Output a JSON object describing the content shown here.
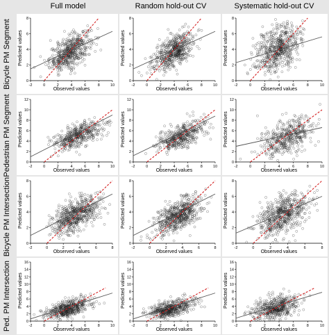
{
  "columns": [
    "Full model",
    "Random hold-out CV",
    "Systematic hold-out CV"
  ],
  "rows": [
    "Bicycle PM Segment",
    "Pedestrian PM Segment",
    "Bicycle PM Intersection",
    "Ped. PM Intersection"
  ],
  "axis_text": {
    "x": "Observed values",
    "y": "Predicted values"
  },
  "colors": {
    "points": "#1a1a1a",
    "fit_line": "#555555",
    "identity_line": "#d42020",
    "panel_bg": "#ffffff",
    "page_bg": "#e6e6e6"
  },
  "chart_data": [
    {
      "type": "scatter",
      "row": 0,
      "col": 0,
      "xlim": [
        -2,
        10
      ],
      "ylim": [
        0,
        8
      ],
      "xticks": [
        -2,
        0,
        2,
        4,
        6,
        8,
        10
      ],
      "yticks": [
        0,
        2,
        4,
        6,
        8
      ],
      "xlabel": "Observed values",
      "ylabel": "Predicted values",
      "fit_line": [
        [
          -2,
          1.5
        ],
        [
          10,
          6.3
        ]
      ],
      "identity_line": [
        [
          0,
          0
        ],
        [
          8,
          8
        ]
      ],
      "point_cloud": {
        "x_center": 3.8,
        "x_sd": 1.5,
        "y_center": 3.7,
        "y_sd": 1.0,
        "n": 550
      }
    },
    {
      "type": "scatter",
      "row": 0,
      "col": 1,
      "xlim": [
        -2,
        10
      ],
      "ylim": [
        0,
        8
      ],
      "xticks": [
        -2,
        0,
        2,
        4,
        6,
        8,
        10
      ],
      "yticks": [
        0,
        2,
        4,
        6,
        8
      ],
      "xlabel": "Observed values",
      "ylabel": "Predicted values",
      "fit_line": [
        [
          -2,
          1.5
        ],
        [
          10,
          6.3
        ]
      ],
      "identity_line": [
        [
          0,
          0
        ],
        [
          8,
          8
        ]
      ],
      "point_cloud": {
        "x_center": 3.8,
        "x_sd": 1.5,
        "y_center": 3.7,
        "y_sd": 1.0,
        "n": 550
      }
    },
    {
      "type": "scatter",
      "row": 0,
      "col": 2,
      "xlim": [
        -2,
        10
      ],
      "ylim": [
        0,
        8
      ],
      "xticks": [
        -2,
        0,
        2,
        4,
        6,
        8,
        10
      ],
      "yticks": [
        0,
        2,
        4,
        6,
        8
      ],
      "xlabel": "Observed values",
      "ylabel": "Predicted values",
      "fit_line": [
        [
          -2,
          2.3
        ],
        [
          10,
          5.6
        ]
      ],
      "identity_line": [
        [
          0,
          0
        ],
        [
          8,
          8
        ]
      ],
      "point_cloud": {
        "x_center": 3.8,
        "x_sd": 1.6,
        "y_center": 4.0,
        "y_sd": 1.5,
        "n": 600
      }
    },
    {
      "type": "scatter",
      "row": 1,
      "col": 0,
      "xlim": [
        -2,
        10
      ],
      "ylim": [
        0,
        12
      ],
      "xticks": [
        -2,
        0,
        2,
        4,
        6,
        8,
        10
      ],
      "yticks": [
        0,
        2,
        4,
        6,
        8,
        10,
        12
      ],
      "xlabel": "Observed values",
      "ylabel": "Predicted values",
      "fit_line": [
        [
          -2,
          1.0
        ],
        [
          10,
          9.0
        ]
      ],
      "identity_line": [
        [
          0,
          0
        ],
        [
          10,
          10
        ]
      ],
      "point_cloud": {
        "x_center": 5.0,
        "x_sd": 1.8,
        "y_center": 5.0,
        "y_sd": 1.1,
        "n": 450
      }
    },
    {
      "type": "scatter",
      "row": 1,
      "col": 1,
      "xlim": [
        -2,
        10
      ],
      "ylim": [
        0,
        12
      ],
      "xticks": [
        -2,
        0,
        2,
        4,
        6,
        8,
        10
      ],
      "yticks": [
        0,
        2,
        4,
        6,
        8,
        10,
        12
      ],
      "xlabel": "Observed values",
      "ylabel": "Predicted values",
      "fit_line": [
        [
          -2,
          1.2
        ],
        [
          10,
          8.8
        ]
      ],
      "identity_line": [
        [
          0,
          0
        ],
        [
          10,
          10
        ]
      ],
      "point_cloud": {
        "x_center": 5.0,
        "x_sd": 1.8,
        "y_center": 5.0,
        "y_sd": 1.2,
        "n": 450
      }
    },
    {
      "type": "scatter",
      "row": 1,
      "col": 2,
      "xlim": [
        -2,
        10
      ],
      "ylim": [
        0,
        12
      ],
      "xticks": [
        -2,
        0,
        2,
        4,
        6,
        8,
        10
      ],
      "yticks": [
        0,
        2,
        4,
        6,
        8,
        10,
        12
      ],
      "xlabel": "Observed values",
      "ylabel": "Predicted values",
      "fit_line": [
        [
          -2,
          3.0
        ],
        [
          10,
          6.6
        ]
      ],
      "identity_line": [
        [
          0,
          0
        ],
        [
          10,
          10
        ]
      ],
      "point_cloud": {
        "x_center": 5.0,
        "x_sd": 1.8,
        "y_center": 4.9,
        "y_sd": 1.6,
        "n": 450
      }
    },
    {
      "type": "scatter",
      "row": 2,
      "col": 0,
      "xlim": [
        -2,
        8
      ],
      "ylim": [
        0,
        8
      ],
      "xticks": [
        -2,
        0,
        2,
        4,
        6,
        8
      ],
      "yticks": [
        0,
        2,
        4,
        6,
        8
      ],
      "xlabel": "Observed values",
      "ylabel": "Predicted values",
      "fit_line": [
        [
          -2,
          1.0
        ],
        [
          8,
          6.3
        ]
      ],
      "identity_line": [
        [
          0,
          0
        ],
        [
          8,
          8
        ]
      ],
      "point_cloud": {
        "x_center": 3.5,
        "x_sd": 1.4,
        "y_center": 3.6,
        "y_sd": 1.0,
        "n": 600
      }
    },
    {
      "type": "scatter",
      "row": 2,
      "col": 1,
      "xlim": [
        -2,
        8
      ],
      "ylim": [
        0,
        8
      ],
      "xticks": [
        -2,
        0,
        2,
        4,
        6,
        8
      ],
      "yticks": [
        0,
        2,
        4,
        6,
        8
      ],
      "xlabel": "Observed values",
      "ylabel": "Predicted values",
      "fit_line": [
        [
          -2,
          1.0
        ],
        [
          8,
          6.3
        ]
      ],
      "identity_line": [
        [
          0,
          0
        ],
        [
          8,
          8
        ]
      ],
      "point_cloud": {
        "x_center": 3.5,
        "x_sd": 1.4,
        "y_center": 3.6,
        "y_sd": 1.0,
        "n": 600
      }
    },
    {
      "type": "scatter",
      "row": 2,
      "col": 2,
      "xlim": [
        -2,
        8
      ],
      "ylim": [
        0,
        8
      ],
      "xticks": [
        -2,
        0,
        2,
        4,
        6,
        8
      ],
      "yticks": [
        0,
        2,
        4,
        6,
        8
      ],
      "xlabel": "Observed values",
      "ylabel": "Predicted values",
      "fit_line": [
        [
          -2,
          1.3
        ],
        [
          8,
          6.0
        ]
      ],
      "identity_line": [
        [
          0,
          0
        ],
        [
          8,
          8
        ]
      ],
      "point_cloud": {
        "x_center": 3.5,
        "x_sd": 1.4,
        "y_center": 3.7,
        "y_sd": 1.3,
        "n": 600
      }
    },
    {
      "type": "scatter",
      "row": 3,
      "col": 0,
      "xlim": [
        -2,
        10
      ],
      "ylim": [
        0,
        16
      ],
      "xticks": [
        -2,
        0,
        2,
        4,
        6,
        8,
        10
      ],
      "yticks": [
        0,
        2,
        4,
        6,
        8,
        10,
        12,
        14,
        16
      ],
      "xlabel": "Observed values",
      "ylabel": "Predicted values",
      "fit_line": [
        [
          -2,
          0.6
        ],
        [
          10,
          7.6
        ]
      ],
      "identity_line": [
        [
          0,
          0
        ],
        [
          9,
          9
        ]
      ],
      "point_cloud": {
        "x_center": 3.5,
        "x_sd": 1.6,
        "y_center": 3.3,
        "y_sd": 1.1,
        "n": 500
      }
    },
    {
      "type": "scatter",
      "row": 3,
      "col": 1,
      "xlim": [
        -2,
        10
      ],
      "ylim": [
        0,
        16
      ],
      "xticks": [
        -2,
        0,
        2,
        4,
        6,
        8,
        10
      ],
      "yticks": [
        0,
        2,
        4,
        6,
        8,
        10,
        12,
        14,
        16
      ],
      "xlabel": "Observed values",
      "ylabel": "Predicted values",
      "fit_line": [
        [
          -2,
          0.6
        ],
        [
          10,
          7.6
        ]
      ],
      "identity_line": [
        [
          0,
          0
        ],
        [
          9,
          9
        ]
      ],
      "point_cloud": {
        "x_center": 3.5,
        "x_sd": 1.6,
        "y_center": 3.3,
        "y_sd": 1.1,
        "n": 500
      }
    },
    {
      "type": "scatter",
      "row": 3,
      "col": 2,
      "xlim": [
        -2,
        10
      ],
      "ylim": [
        0,
        16
      ],
      "xticks": [
        -2,
        0,
        2,
        4,
        6,
        8,
        10
      ],
      "yticks": [
        0,
        2,
        4,
        6,
        8,
        10,
        12,
        14,
        16
      ],
      "xlabel": "Observed values",
      "ylabel": "Predicted values",
      "fit_line": [
        [
          -2,
          0.8
        ],
        [
          10,
          7.8
        ]
      ],
      "identity_line": [
        [
          0,
          0
        ],
        [
          9,
          9
        ]
      ],
      "point_cloud": {
        "x_center": 3.6,
        "x_sd": 1.7,
        "y_center": 3.6,
        "y_sd": 1.6,
        "n": 500
      }
    }
  ]
}
